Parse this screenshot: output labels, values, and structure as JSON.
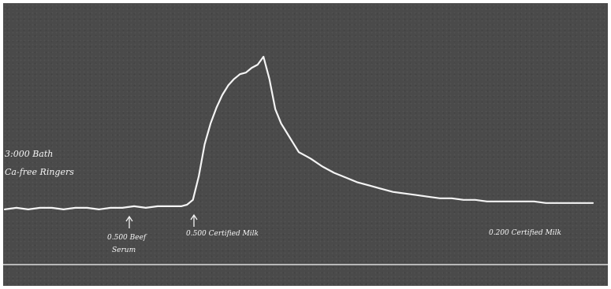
{
  "chart_data": {
    "type": "line",
    "title": "",
    "xlabel": "",
    "ylabel": "",
    "colors": {
      "background": "#4a4a4a",
      "trace": "#f4f4f4",
      "baseline": "#dcdcdc"
    },
    "annotations": {
      "start": [
        "3:000 Bath",
        "Ca-free Ringers"
      ],
      "serum": [
        "0.500 Beef",
        "Serum"
      ],
      "milk_added": "0.500 Certified Milk",
      "milk_end": "0.200 Certified Milk"
    },
    "series": [
      {
        "x": [
          0,
          2,
          4,
          6,
          8,
          10,
          12,
          14,
          16,
          18,
          20,
          22,
          24,
          26,
          28,
          30,
          31,
          32,
          33,
          34,
          35,
          36,
          37,
          38,
          39,
          40,
          41,
          42,
          43,
          44,
          45,
          46,
          47,
          48,
          49,
          50,
          52,
          54,
          56,
          58,
          60,
          62,
          64,
          66,
          68,
          70,
          72,
          74,
          76,
          78,
          80,
          82,
          84,
          86,
          88,
          90,
          92,
          94,
          96,
          98,
          100
        ],
        "y": [
          4,
          5,
          4,
          5,
          5,
          4,
          5,
          5,
          4,
          5,
          5,
          6,
          5,
          6,
          6,
          6,
          7,
          10,
          25,
          45,
          58,
          68,
          76,
          82,
          86,
          89,
          90,
          93,
          95,
          100,
          86,
          67,
          58,
          52,
          46,
          40,
          36,
          31,
          27,
          24,
          21,
          19,
          17,
          15,
          14,
          13,
          12,
          11,
          11,
          10,
          10,
          9,
          9,
          9,
          9,
          9,
          8,
          8,
          8,
          8,
          8
        ]
      }
    ],
    "xlim": [
      0,
      100
    ],
    "ylim": [
      0,
      100
    ],
    "grid": false
  }
}
